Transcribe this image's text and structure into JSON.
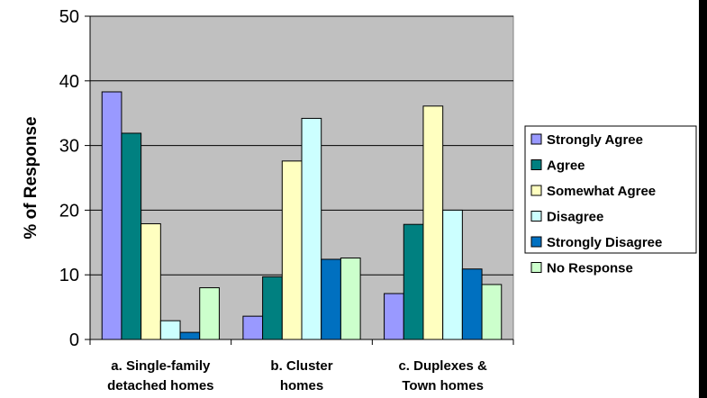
{
  "chart_data": {
    "type": "bar",
    "title": "",
    "xlabel": "",
    "ylabel": "% of Response",
    "ylim": [
      0,
      50
    ],
    "yticks": [
      0,
      10,
      20,
      30,
      40,
      50
    ],
    "grid": true,
    "legend_position": "right",
    "categories": [
      [
        "a.  Single-family",
        "detached homes"
      ],
      [
        "b.  Cluster",
        "homes"
      ],
      [
        "c.  Duplexes &",
        "Town homes"
      ]
    ],
    "series": [
      {
        "name": "Strongly Agree",
        "color": "#9999ff",
        "values": [
          38.3,
          3.6,
          7.1
        ]
      },
      {
        "name": "Agree",
        "color": "#008080",
        "values": [
          31.9,
          9.7,
          17.8
        ]
      },
      {
        "name": "Somewhat Agree",
        "color": "#ffffc0",
        "values": [
          17.9,
          27.6,
          36.1
        ]
      },
      {
        "name": "Disagree",
        "color": "#ccffff",
        "values": [
          2.9,
          34.2,
          20.0
        ]
      },
      {
        "name": " Strongly Disagree",
        "color": "#0070c0",
        "values": [
          1.1,
          12.4,
          10.9
        ]
      },
      {
        "name": "No Response",
        "color": "#ccffcc",
        "values": [
          8.0,
          12.6,
          8.5
        ]
      }
    ]
  },
  "style": {
    "plot_background": "#c0c0c0",
    "grid_color": "#000000"
  }
}
